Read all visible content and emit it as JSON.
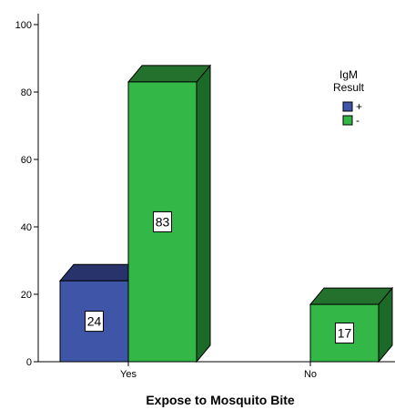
{
  "chart_data": {
    "type": "bar",
    "style": "3d-clustered",
    "categories": [
      "Yes",
      "No"
    ],
    "series": [
      {
        "name": "+",
        "values": [
          24,
          null
        ],
        "color": "#3F56A8",
        "top_color": "#27336A",
        "side_color": "#1E2A5C"
      },
      {
        "name": "-",
        "values": [
          83,
          17
        ],
        "color": "#33B848",
        "top_color": "#23712C",
        "side_color": "#1B6A27"
      }
    ],
    "data_labels": [
      [
        "24",
        null
      ],
      [
        "83",
        "17"
      ]
    ],
    "xlabel": "Expose to Mosquito Bite",
    "ylabel": "",
    "ylim": [
      0,
      100
    ],
    "yticks": [
      "0",
      "20",
      "40",
      "60",
      "80",
      "100"
    ],
    "grid": false,
    "legend": {
      "title_line1": "IgM",
      "title_line2": "Result",
      "placement": "right"
    }
  }
}
